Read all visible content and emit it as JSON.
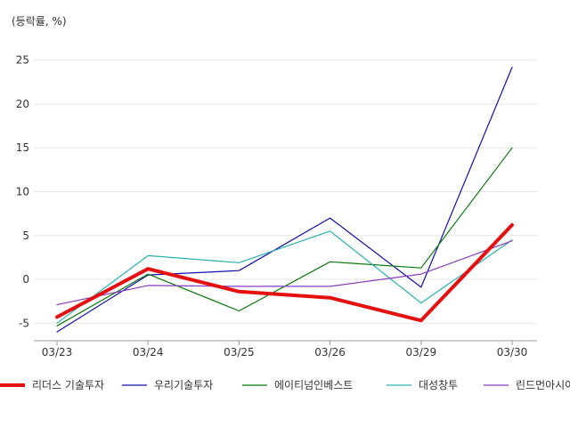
{
  "chart_data": {
    "type": "line",
    "unit_label": "(등락률, %)",
    "categories": [
      "03/23",
      "03/24",
      "03/25",
      "03/26",
      "03/29",
      "03/30"
    ],
    "yticks": [
      -5,
      0,
      5,
      10,
      15,
      20,
      25
    ],
    "ylim": [
      -7,
      27
    ],
    "grid": true,
    "legend_position": "bottom",
    "series": [
      {
        "name": "우리기술투자",
        "color": "#1010b0",
        "values": [
          -6.0,
          0.5,
          1.0,
          7.0,
          -0.9,
          24.2
        ]
      },
      {
        "name": "에이티넘인베스트",
        "color": "#0a7a0a",
        "values": [
          -5.3,
          0.6,
          -3.6,
          2.0,
          1.3,
          15.0
        ]
      },
      {
        "name": "대성창투",
        "color": "#2ab0b0",
        "values": [
          -5.0,
          2.7,
          1.9,
          5.5,
          -2.7,
          4.5
        ]
      },
      {
        "name": "린드먼아시아",
        "color": "#8a3cc0",
        "values": [
          -2.9,
          -0.7,
          -0.8,
          -0.8,
          0.6,
          4.4
        ]
      },
      {
        "name": "리더스 기술투자",
        "color": "#e60f0f",
        "values": [
          -4.3,
          1.2,
          -1.4,
          -2.1,
          -4.7,
          6.2
        ],
        "emphasis": true
      }
    ],
    "legend_order": [
      "리더스 기술투자",
      "우리기술투자",
      "에이티넘인베스트",
      "대성창투",
      "린드먼아시아"
    ]
  }
}
